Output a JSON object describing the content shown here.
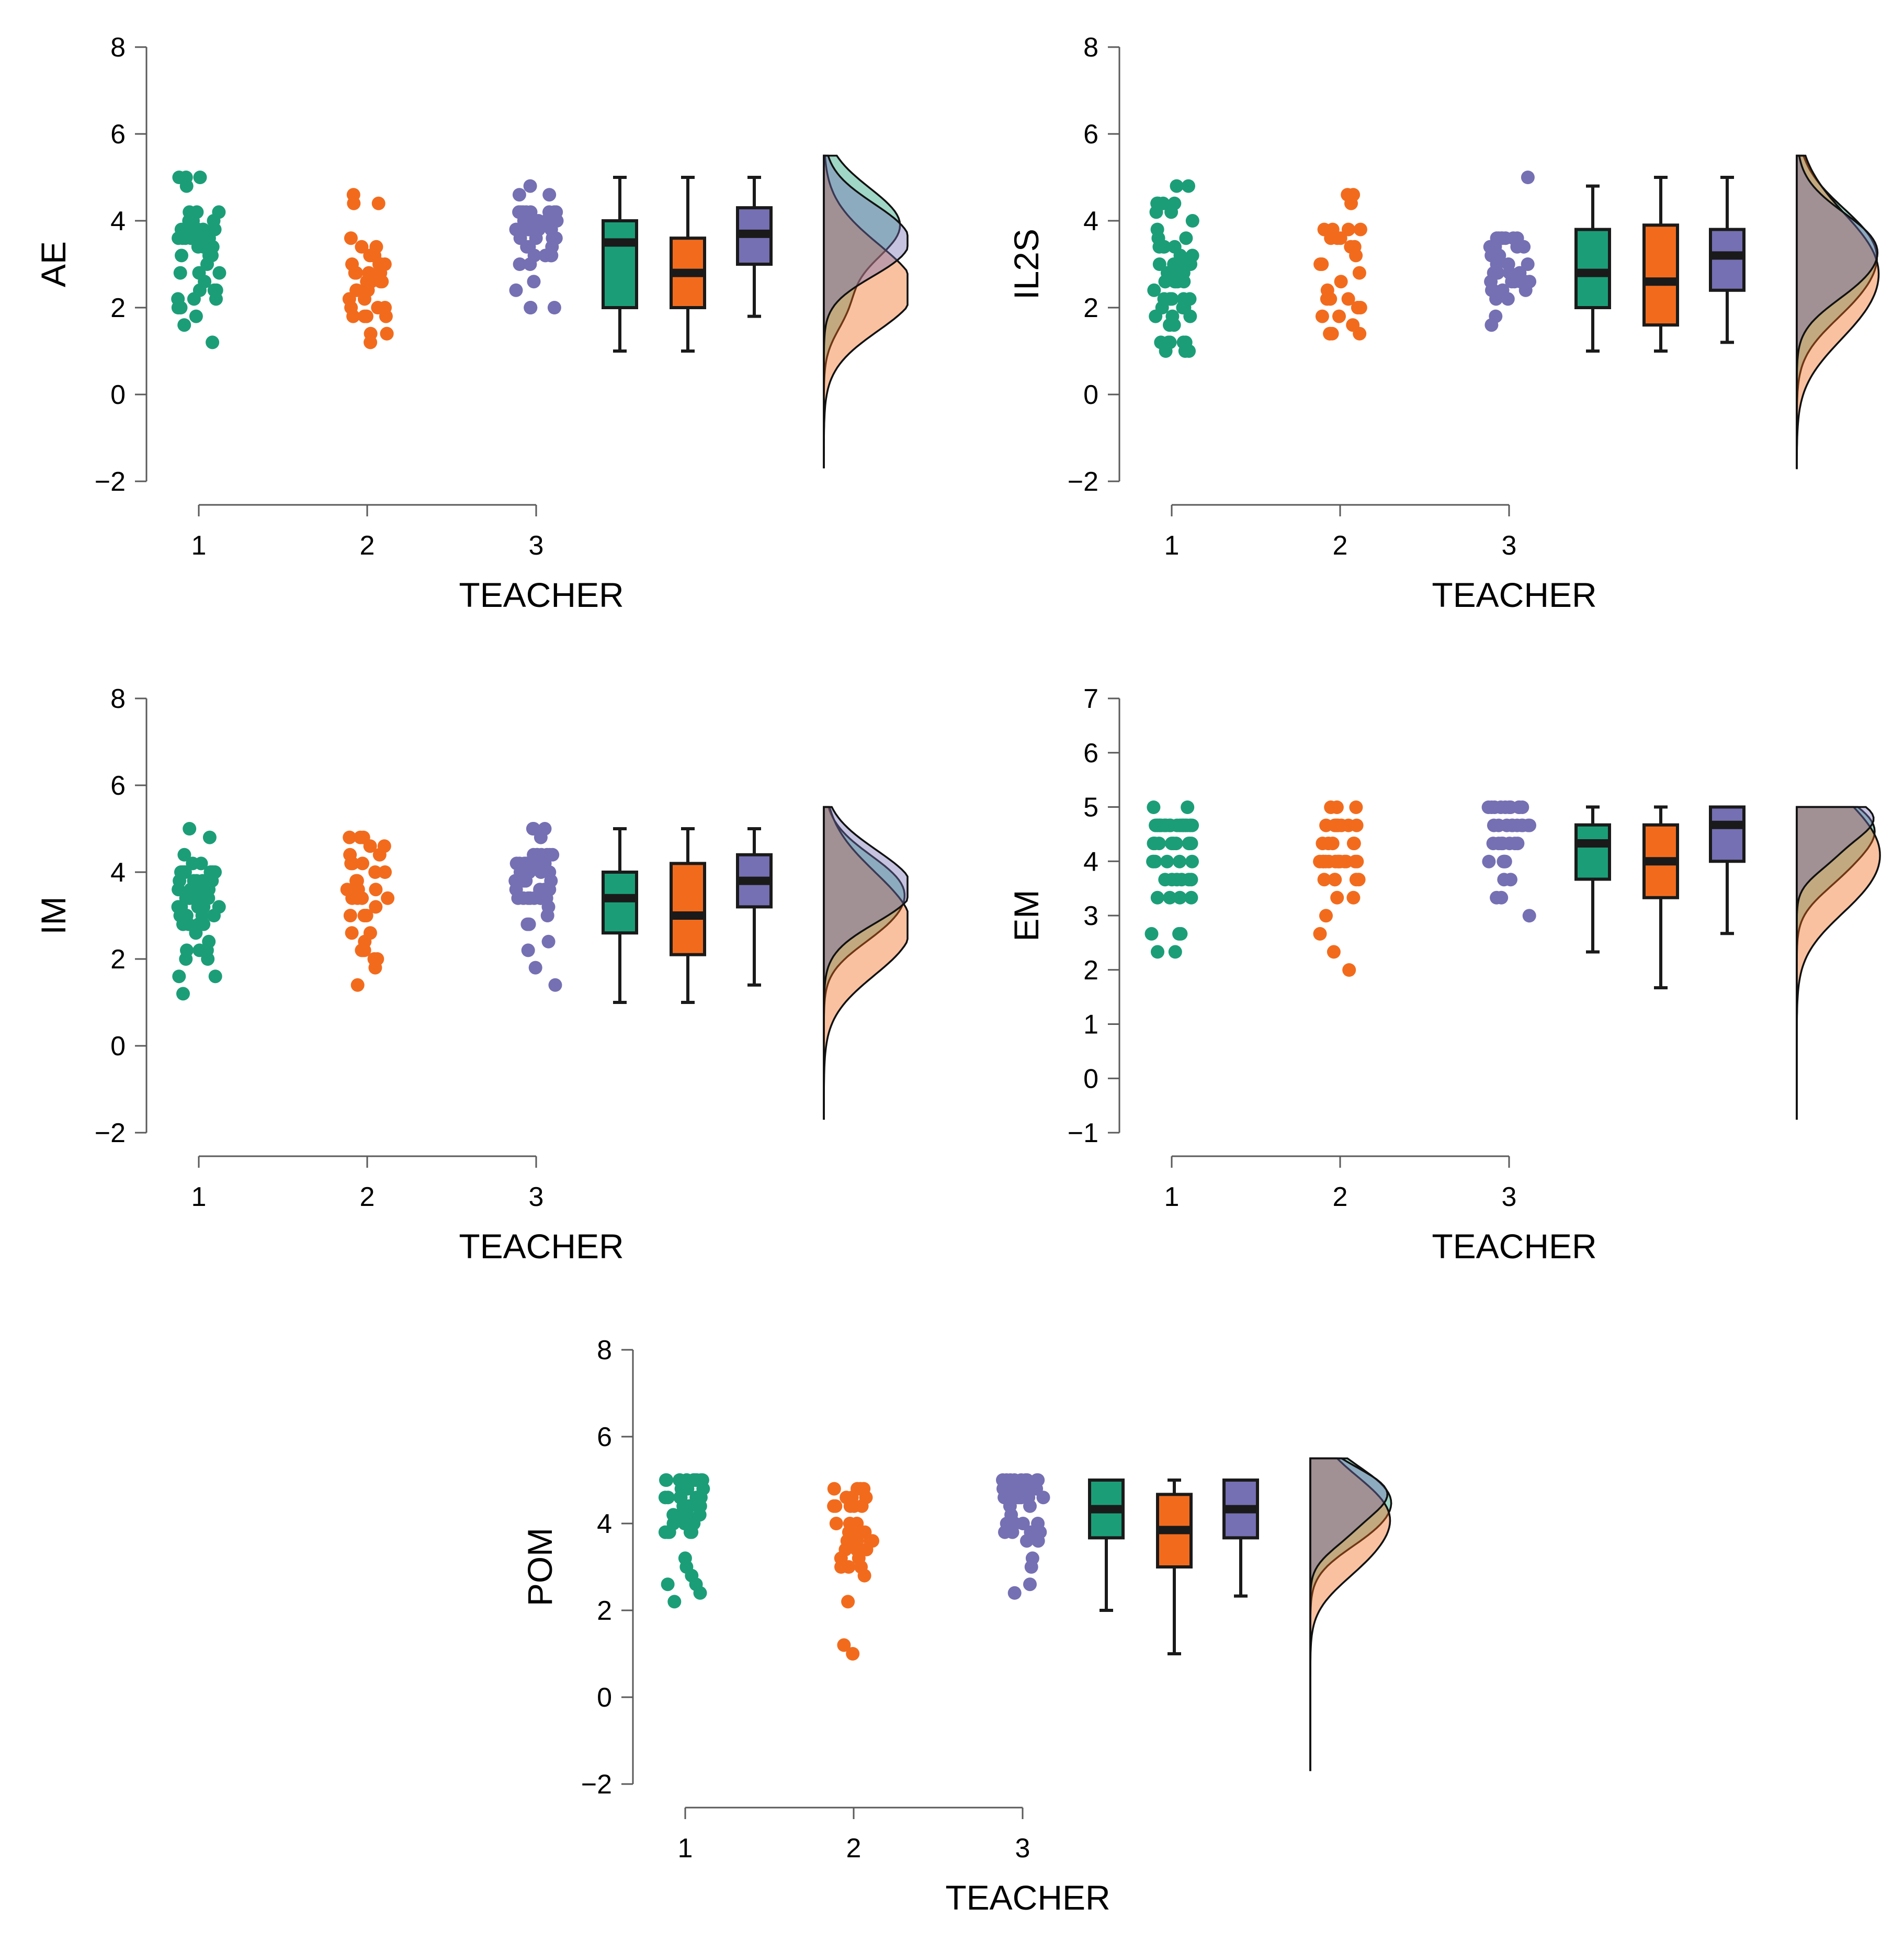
{
  "figure": {
    "x_title": "TEACHER",
    "group_labels": [
      "1",
      "2",
      "3"
    ],
    "colors": [
      "#1b9e77",
      "#f26b1d",
      "#7570b3"
    ]
  },
  "chart_data": [
    {
      "type": "raincloud",
      "ylabel": "AE",
      "xlabel": "TEACHER",
      "ylim": [
        -2,
        8
      ],
      "yticks": [
        -2,
        0,
        2,
        4,
        6,
        8
      ],
      "groups": [
        {
          "label": "1",
          "box": {
            "min": 1.0,
            "q1": 2.0,
            "median": 3.5,
            "q3": 4.0,
            "max": 5.0
          },
          "mode": 3.9,
          "spread": 0.85,
          "points": 60
        },
        {
          "label": "2",
          "box": {
            "min": 1.0,
            "q1": 2.0,
            "median": 2.8,
            "q3": 3.6,
            "max": 5.0
          },
          "mode": 2.6,
          "spread": 1.0,
          "points": 38
        },
        {
          "label": "3",
          "box": {
            "min": 1.8,
            "q1": 3.0,
            "median": 3.7,
            "q3": 4.3,
            "max": 5.0
          },
          "mode": 3.7,
          "spread": 0.75,
          "points": 45
        }
      ]
    },
    {
      "type": "raincloud",
      "ylabel": "IL2S",
      "xlabel": "TEACHER",
      "ylim": [
        -2,
        8
      ],
      "yticks": [
        -2,
        0,
        2,
        4,
        6,
        8
      ],
      "groups": [
        {
          "label": "1",
          "box": {
            "min": 1.0,
            "q1": 2.0,
            "median": 2.8,
            "q3": 3.8,
            "max": 4.8
          },
          "mode": 3.3,
          "spread": 1.0,
          "points": 60
        },
        {
          "label": "2",
          "box": {
            "min": 1.0,
            "q1": 1.6,
            "median": 2.6,
            "q3": 3.9,
            "max": 5.0
          },
          "mode": 3.0,
          "spread": 1.2,
          "points": 30
        },
        {
          "label": "3",
          "box": {
            "min": 1.2,
            "q1": 2.4,
            "median": 3.2,
            "q3": 3.8,
            "max": 5.0
          },
          "mode": 3.4,
          "spread": 0.8,
          "points": 40
        }
      ]
    },
    {
      "type": "raincloud",
      "ylabel": "IM",
      "xlabel": "TEACHER",
      "ylim": [
        -2,
        8
      ],
      "yticks": [
        -2,
        0,
        2,
        4,
        6,
        8
      ],
      "groups": [
        {
          "label": "1",
          "box": {
            "min": 1.0,
            "q1": 2.6,
            "median": 3.4,
            "q3": 4.0,
            "max": 5.0
          },
          "mode": 3.6,
          "spread": 0.8,
          "points": 60
        },
        {
          "label": "2",
          "box": {
            "min": 1.0,
            "q1": 2.1,
            "median": 3.0,
            "q3": 4.2,
            "max": 5.0
          },
          "mode": 3.0,
          "spread": 1.1,
          "points": 35
        },
        {
          "label": "3",
          "box": {
            "min": 1.4,
            "q1": 3.2,
            "median": 3.8,
            "q3": 4.4,
            "max": 5.0
          },
          "mode": 3.8,
          "spread": 0.8,
          "points": 55
        }
      ]
    },
    {
      "type": "raincloud",
      "ylabel": "EM",
      "xlabel": "TEACHER",
      "ylim": [
        -1,
        7
      ],
      "yticks": [
        -1,
        0,
        1,
        2,
        3,
        4,
        5,
        6,
        7
      ],
      "groups": [
        {
          "label": "1",
          "box": {
            "min": 2.33,
            "q1": 3.67,
            "median": 4.33,
            "q3": 4.67,
            "max": 5.0
          },
          "mode": 4.6,
          "spread": 0.6,
          "points": 60
        },
        {
          "label": "2",
          "box": {
            "min": 1.67,
            "q1": 3.33,
            "median": 4.0,
            "q3": 4.67,
            "max": 5.0
          },
          "mode": 4.3,
          "spread": 0.9,
          "points": 40
        },
        {
          "label": "3",
          "box": {
            "min": 2.67,
            "q1": 4.0,
            "median": 4.67,
            "q3": 5.0,
            "max": 5.0
          },
          "mode": 4.8,
          "spread": 0.45,
          "points": 38
        }
      ]
    },
    {
      "type": "raincloud",
      "ylabel": "POM",
      "xlabel": "TEACHER",
      "ylim": [
        -2,
        8
      ],
      "yticks": [
        -2,
        0,
        2,
        4,
        6,
        8
      ],
      "groups": [
        {
          "label": "1",
          "box": {
            "min": 2.0,
            "q1": 3.67,
            "median": 4.33,
            "q3": 5.0,
            "max": 5.0
          },
          "mode": 4.6,
          "spread": 0.75,
          "points": 50
        },
        {
          "label": "2",
          "box": {
            "min": 1.0,
            "q1": 3.0,
            "median": 3.85,
            "q3": 4.67,
            "max": 5.0
          },
          "mode": 4.2,
          "spread": 0.9,
          "points": 35
        },
        {
          "label": "3",
          "box": {
            "min": 2.33,
            "q1": 3.67,
            "median": 4.33,
            "q3": 5.0,
            "max": 5.0
          },
          "mode": 4.7,
          "spread": 0.6,
          "points": 45
        }
      ]
    }
  ]
}
